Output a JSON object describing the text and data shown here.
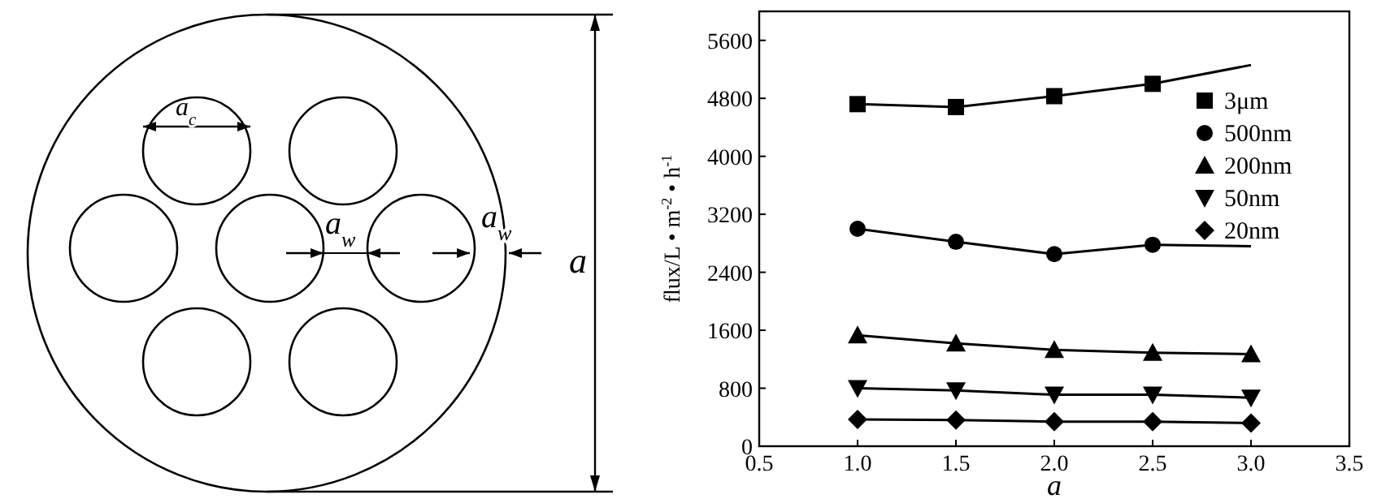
{
  "chart_data": {
    "type": "line",
    "xlabel": "a",
    "ylabel": "flux/L • m$^{-2}$ • h$^{-1}$",
    "annotations": [
      "a$_{c}$",
      "a$_{w}$",
      "a$_{w}$",
      "a"
    ],
    "series": [
      {
        "name": "3μm",
        "color": "#000000",
        "marker": "square",
        "x": [
          1.0,
          1.5,
          2.0,
          2.5
        ],
        "values": [
          4720,
          4680,
          4830,
          5000
        ]
      },
      {
        "color": "#000000",
        "marker": "none",
        "x": [
          2.5,
          3.0
        ],
        "values": [
          5000,
          5260
        ]
      },
      {
        "name": "500nm",
        "color": "#000000",
        "marker": "circle",
        "x": [
          1.0,
          1.5,
          2.0,
          2.5
        ],
        "values": [
          3000,
          2820,
          2650,
          2780
        ]
      },
      {
        "color": "#000000",
        "marker": "none",
        "x": [
          2.5,
          3.0
        ],
        "values": [
          2780,
          2760
        ]
      },
      {
        "name": "200nm",
        "color": "#000000",
        "marker": "triangle",
        "x": [
          1.0,
          1.5,
          2.0,
          2.5,
          3.0
        ],
        "values": [
          1530,
          1420,
          1330,
          1290,
          1270
        ]
      },
      {
        "name": "50nm",
        "color": "#000000",
        "marker": "triangle-down",
        "x": [
          1.0,
          1.5,
          2.0,
          2.5,
          3.0
        ],
        "values": [
          800,
          770,
          710,
          710,
          670
        ]
      },
      {
        "name": "20nm",
        "color": "#000000",
        "marker": "diamond",
        "x": [
          1.0,
          1.5,
          2.0,
          2.5,
          3.0
        ],
        "values": [
          370,
          360,
          340,
          340,
          320
        ]
      }
    ],
    "xlim": [
      0.5,
      3.5
    ],
    "xticks": [
      {
        "value": 0.5,
        "label": "0.5"
      },
      {
        "value": 1,
        "label": "1.0"
      },
      {
        "value": 1.5,
        "label": "1.5"
      },
      {
        "value": 2,
        "label": "2.0"
      },
      {
        "value": 2.5,
        "label": "2.5"
      },
      {
        "value": 3,
        "label": "3.0"
      },
      {
        "value": 3.5,
        "label": "3.5"
      }
    ],
    "ylim": [
      0,
      6000
    ],
    "yticks": [
      0,
      800,
      1600,
      2400,
      3200,
      4000,
      4800,
      5600
    ],
    "legend": "top right",
    "grid": false
  }
}
